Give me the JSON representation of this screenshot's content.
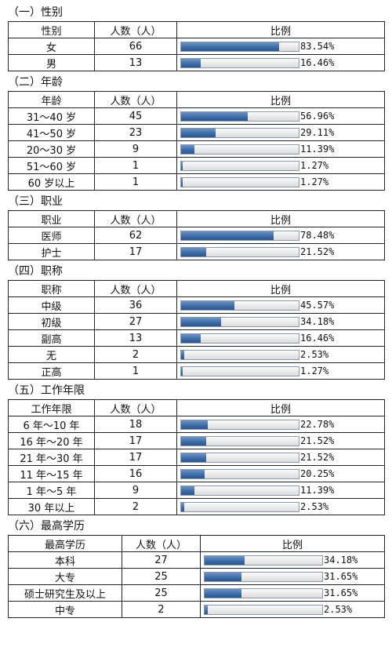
{
  "sections": [
    {
      "title": "（一）性别",
      "headers": [
        "性别",
        "人数（人）",
        "比例"
      ],
      "rows": [
        {
          "label": "女",
          "count": 66,
          "percent": 83.54,
          "percent_label": "83.54%"
        },
        {
          "label": "男",
          "count": 13,
          "percent": 16.46,
          "percent_label": "16.46%"
        }
      ]
    },
    {
      "title": "（二）年龄",
      "headers": [
        "年龄",
        "人数（人）",
        "比例"
      ],
      "rows": [
        {
          "label": "31～40 岁",
          "count": 45,
          "percent": 56.96,
          "percent_label": "56.96%"
        },
        {
          "label": "41～50 岁",
          "count": 23,
          "percent": 29.11,
          "percent_label": "29.11%"
        },
        {
          "label": "20～30 岁",
          "count": 9,
          "percent": 11.39,
          "percent_label": "11.39%"
        },
        {
          "label": "51～60 岁",
          "count": 1,
          "percent": 1.27,
          "percent_label": "1.27%"
        },
        {
          "label": "60 岁以上",
          "count": 1,
          "percent": 1.27,
          "percent_label": "1.27%"
        }
      ]
    },
    {
      "title": "（三）职业",
      "headers": [
        "职业",
        "人数（人）",
        "比例"
      ],
      "rows": [
        {
          "label": "医师",
          "count": 62,
          "percent": 78.48,
          "percent_label": "78.48%"
        },
        {
          "label": "护士",
          "count": 17,
          "percent": 21.52,
          "percent_label": "21.52%"
        }
      ]
    },
    {
      "title": "（四）职称",
      "headers": [
        "职称",
        "人数（人）",
        "比例"
      ],
      "rows": [
        {
          "label": "中级",
          "count": 36,
          "percent": 45.57,
          "percent_label": "45.57%"
        },
        {
          "label": "初级",
          "count": 27,
          "percent": 34.18,
          "percent_label": "34.18%"
        },
        {
          "label": "副高",
          "count": 13,
          "percent": 16.46,
          "percent_label": "16.46%"
        },
        {
          "label": "无",
          "count": 2,
          "percent": 2.53,
          "percent_label": "2.53%"
        },
        {
          "label": "正高",
          "count": 1,
          "percent": 1.27,
          "percent_label": "1.27%"
        }
      ]
    },
    {
      "title": "（五）工作年限",
      "headers": [
        "工作年限",
        "人数（人）",
        "比例"
      ],
      "rows": [
        {
          "label": "6 年～10 年",
          "count": 18,
          "percent": 22.78,
          "percent_label": "22.78%"
        },
        {
          "label": "16 年～20 年",
          "count": 17,
          "percent": 21.52,
          "percent_label": "21.52%"
        },
        {
          "label": "21 年～30 年",
          "count": 17,
          "percent": 21.52,
          "percent_label": "21.52%"
        },
        {
          "label": "11 年～15 年",
          "count": 16,
          "percent": 20.25,
          "percent_label": "20.25%"
        },
        {
          "label": "1 年～5 年",
          "count": 9,
          "percent": 11.39,
          "percent_label": "11.39%"
        },
        {
          "label": "30 年以上",
          "count": 2,
          "percent": 2.53,
          "percent_label": "2.53%"
        }
      ]
    },
    {
      "title": "（六）最高学历",
      "headers": [
        "最高学历",
        "人数（人）",
        "比例"
      ],
      "rows": [
        {
          "label": "本科",
          "count": 27,
          "percent": 34.18,
          "percent_label": "34.18%"
        },
        {
          "label": "大专",
          "count": 25,
          "percent": 31.65,
          "percent_label": "31.65%"
        },
        {
          "label": "硕士研究生及以上",
          "count": 25,
          "percent": 31.65,
          "percent_label": "31.65%"
        },
        {
          "label": "中专",
          "count": 2,
          "percent": 2.53,
          "percent_label": "2.53%"
        }
      ]
    }
  ]
}
